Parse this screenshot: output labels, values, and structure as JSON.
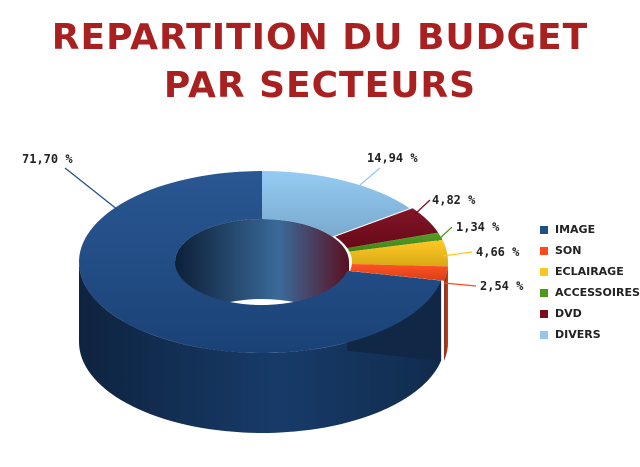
{
  "chart_data": {
    "type": "pie",
    "variant": "3d-donut",
    "title_lines": [
      "REPARTITION DU BUDGET",
      "PAR SECTEURS"
    ],
    "slices": [
      {
        "name": "IMAGE",
        "value": 71.7,
        "label": "71,70 %",
        "color": "#1f4e8c"
      },
      {
        "name": "SON",
        "value": 2.54,
        "label": "2,54 %",
        "color": "#ff4a1a"
      },
      {
        "name": "ECLAIRAGE",
        "value": 4.66,
        "label": "4,66 %",
        "color": "#ffc61a"
      },
      {
        "name": "ACCESSOIRES",
        "value": 1.34,
        "label": "1,34 %",
        "color": "#4c9a1c"
      },
      {
        "name": "DVD",
        "value": 4.82,
        "label": "4,82 %",
        "color": "#7a0a1c"
      },
      {
        "name": "DIVERS",
        "value": 14.94,
        "label": "14,94 %",
        "color": "#8fc8f2"
      }
    ],
    "legend_position": "right"
  }
}
